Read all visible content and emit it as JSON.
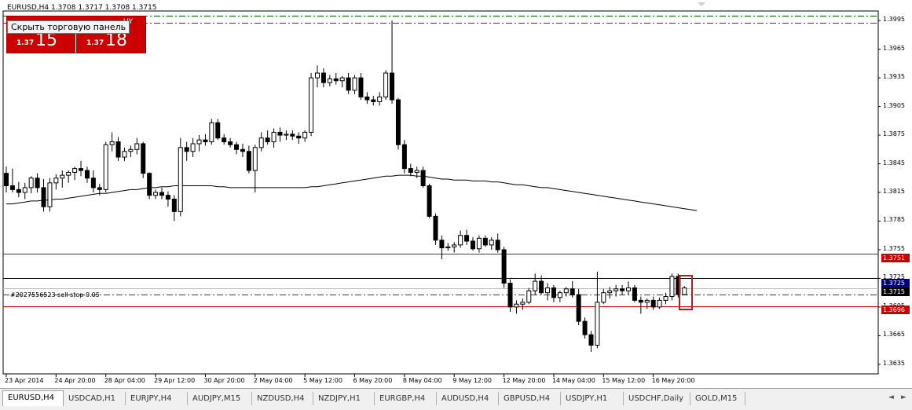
{
  "header": {
    "title": "EURUSD,H4  1.3708 1.3717 1.3708 1.3715"
  },
  "trade_panel": {
    "sell_small": "1.37",
    "sell_big": "15",
    "buy_small": "1.37",
    "buy_big": "18",
    "buy_label": "UY",
    "tooltip": "Скрыть торговую панель"
  },
  "order_label": "#2027556523 sell stop 0.05",
  "price_tags": {
    "upper_red": "1.3751",
    "blue": "1.3725",
    "black": "1.3715",
    "lower_red": "1.3696"
  },
  "colors": {
    "red_line": "#cc0000",
    "blue_tag": "#000080",
    "green_dashed": "#006400",
    "candle_bull": "#ffffff",
    "candle_bear": "#000000",
    "ma_line": "#000000"
  },
  "tabs": [
    "EURUSD,H4",
    "USDCAD,H1",
    "EURJPY,H4",
    "AUDJPY,M15",
    "NZDUSD,H4",
    "NZDJPY,H1",
    "EURGBP,H4",
    "AUDUSD,H4",
    "GBPUSD,H4",
    "USDJPY,H1",
    "USDCHF,Daily",
    "GOLD,M15"
  ],
  "active_tab": "EURUSD,H4",
  "chart_data": {
    "type": "candlestick",
    "symbol": "EURUSD",
    "timeframe": "H4",
    "y_ticks": [
      "1.3995",
      "1.3965",
      "1.3935",
      "1.3905",
      "1.3875",
      "1.3845",
      "1.3815",
      "1.3785",
      "1.3755",
      "1.3725",
      "1.3695",
      "1.3665",
      "1.3635"
    ],
    "y_tick_values": [
      1.3995,
      1.3965,
      1.3935,
      1.3905,
      1.3875,
      1.3845,
      1.3815,
      1.3785,
      1.3755,
      1.3725,
      1.3695,
      1.3665,
      1.3635
    ],
    "ylim": [
      1.3625,
      1.4005
    ],
    "x_labels": [
      "23 Apr 2014",
      "24 Apr 20:00",
      "28 Apr 04:00",
      "29 Apr 12:00",
      "30 Apr 20:00",
      "2 May 04:00",
      "5 May 12:00",
      "6 May 20:00",
      "8 May 04:00",
      "9 May 12:00",
      "12 May 20:00",
      "14 May 04:00",
      "15 May 12:00",
      "16 May 20:00"
    ],
    "x_label_bar_index": [
      0,
      8,
      16,
      24,
      32,
      40,
      48,
      56,
      64,
      72,
      80,
      88,
      96,
      104
    ],
    "horizontal_lines": [
      {
        "price": 1.4,
        "style": "dash-dot",
        "color": "#006400"
      },
      {
        "price": 1.3993,
        "style": "dash-dot",
        "color": "#006400"
      },
      {
        "price": 1.3751,
        "style": "solid",
        "color": "#cc0000"
      },
      {
        "price": 1.3725,
        "style": "solid",
        "color": "#000000"
      },
      {
        "price": 1.3715,
        "style": "solid",
        "color": "#c0c0c0"
      },
      {
        "price": 1.3708,
        "style": "dash-dot",
        "color": "#006400"
      },
      {
        "price": 1.3696,
        "style": "solid",
        "color": "#cc0000"
      }
    ],
    "moving_average": [
      1.3803,
      1.3803,
      1.3804,
      1.3805,
      1.3806,
      1.3806,
      1.3807,
      1.3807,
      1.3808,
      1.3808,
      1.3809,
      1.381,
      1.3811,
      1.3812,
      1.3813,
      1.3814,
      1.3814,
      1.3815,
      1.3816,
      1.3817,
      1.3818,
      1.3818,
      1.3819,
      1.382,
      1.382,
      1.3821,
      1.3821,
      1.3822,
      1.3822,
      1.3822,
      1.3822,
      1.3822,
      1.3822,
      1.3822,
      1.3821,
      1.3821,
      1.382,
      1.382,
      1.382,
      1.382,
      1.382,
      1.382,
      1.382,
      1.382,
      1.382,
      1.382,
      1.382,
      1.382,
      1.382,
      1.3821,
      1.3821,
      1.3822,
      1.3823,
      1.3824,
      1.3825,
      1.3826,
      1.3827,
      1.3828,
      1.3829,
      1.383,
      1.3831,
      1.3832,
      1.3832,
      1.3833,
      1.3833,
      1.3833,
      1.3832,
      1.3832,
      1.3831,
      1.383,
      1.3829,
      1.3829,
      1.3828,
      1.3828,
      1.3828,
      1.3827,
      1.3827,
      1.3827,
      1.3826,
      1.3826,
      1.3825,
      1.3824,
      1.3823,
      1.3823,
      1.3822,
      1.3821,
      1.382,
      1.382,
      1.3819,
      1.3818,
      1.3817,
      1.3816,
      1.3815,
      1.3814,
      1.3813,
      1.3812,
      1.3811,
      1.381,
      1.3809,
      1.3808,
      1.3807,
      1.3806,
      1.3805,
      1.3804,
      1.3803,
      1.3802,
      1.3801,
      1.38,
      1.3799,
      1.3798,
      1.3797,
      1.3796
    ],
    "candles": [
      [
        1.3835,
        1.3842,
        1.3815,
        1.3822
      ],
      [
        1.3822,
        1.384,
        1.3815,
        1.3818
      ],
      [
        1.3818,
        1.3826,
        1.381,
        1.3815
      ],
      [
        1.3815,
        1.3825,
        1.3808,
        1.382
      ],
      [
        1.382,
        1.3832,
        1.3814,
        1.383
      ],
      [
        1.383,
        1.3835,
        1.3815,
        1.382
      ],
      [
        1.382,
        1.3829,
        1.3795,
        1.38
      ],
      [
        1.38,
        1.383,
        1.3795,
        1.3825
      ],
      [
        1.3825,
        1.3834,
        1.3818,
        1.383
      ],
      [
        1.383,
        1.3838,
        1.382,
        1.3833
      ],
      [
        1.3833,
        1.3838,
        1.3825,
        1.3836
      ],
      [
        1.3836,
        1.3842,
        1.3828,
        1.384
      ],
      [
        1.384,
        1.3848,
        1.3832,
        1.3838
      ],
      [
        1.3838,
        1.3842,
        1.3825,
        1.383
      ],
      [
        1.383,
        1.3838,
        1.3815,
        1.382
      ],
      [
        1.382,
        1.3824,
        1.3812,
        1.3818
      ],
      [
        1.3818,
        1.3868,
        1.3815,
        1.3865
      ],
      [
        1.3865,
        1.3878,
        1.3858,
        1.3868
      ],
      [
        1.3868,
        1.3873,
        1.3848,
        1.3852
      ],
      [
        1.3852,
        1.3862,
        1.3848,
        1.3858
      ],
      [
        1.3858,
        1.3864,
        1.3852,
        1.386
      ],
      [
        1.386,
        1.3872,
        1.3855,
        1.3866
      ],
      [
        1.3866,
        1.3868,
        1.383,
        1.3835
      ],
      [
        1.3835,
        1.3836,
        1.3808,
        1.3812
      ],
      [
        1.3812,
        1.3818,
        1.3808,
        1.3815
      ],
      [
        1.3815,
        1.382,
        1.3808,
        1.3812
      ],
      [
        1.3812,
        1.3816,
        1.38,
        1.3808
      ],
      [
        1.3808,
        1.3812,
        1.3785,
        1.3795
      ],
      [
        1.3795,
        1.3872,
        1.379,
        1.3862
      ],
      [
        1.3862,
        1.3868,
        1.3848,
        1.3858
      ],
      [
        1.3858,
        1.3872,
        1.3852,
        1.3866
      ],
      [
        1.3866,
        1.3875,
        1.3858,
        1.387
      ],
      [
        1.387,
        1.3876,
        1.3864,
        1.3868
      ],
      [
        1.3868,
        1.3892,
        1.3865,
        1.3888
      ],
      [
        1.3888,
        1.3892,
        1.387,
        1.3872
      ],
      [
        1.3872,
        1.3876,
        1.3865,
        1.3868
      ],
      [
        1.3868,
        1.3872,
        1.3862,
        1.3865
      ],
      [
        1.3865,
        1.3868,
        1.3855,
        1.386
      ],
      [
        1.386,
        1.3866,
        1.3852,
        1.3858
      ],
      [
        1.3858,
        1.3864,
        1.3835,
        1.3838
      ],
      [
        1.3838,
        1.3865,
        1.3815,
        1.3862
      ],
      [
        1.3862,
        1.3878,
        1.3858,
        1.3872
      ],
      [
        1.3872,
        1.388,
        1.3865,
        1.3868
      ],
      [
        1.3868,
        1.3882,
        1.3862,
        1.3878
      ],
      [
        1.3878,
        1.3883,
        1.3868,
        1.3875
      ],
      [
        1.3875,
        1.388,
        1.387,
        1.3876
      ],
      [
        1.3876,
        1.388,
        1.387,
        1.3874
      ],
      [
        1.3874,
        1.3878,
        1.3866,
        1.3872
      ],
      [
        1.3872,
        1.388,
        1.3868,
        1.3878
      ],
      [
        1.3878,
        1.394,
        1.3874,
        1.3935
      ],
      [
        1.3935,
        1.3948,
        1.3925,
        1.394
      ],
      [
        1.394,
        1.3945,
        1.3925,
        1.393
      ],
      [
        1.393,
        1.3938,
        1.3926,
        1.3934
      ],
      [
        1.3934,
        1.394,
        1.3928,
        1.3932
      ],
      [
        1.3932,
        1.3937,
        1.3925,
        1.3935
      ],
      [
        1.3935,
        1.394,
        1.3918,
        1.3922
      ],
      [
        1.3922,
        1.3938,
        1.3918,
        1.3935
      ],
      [
        1.3935,
        1.394,
        1.3912,
        1.3915
      ],
      [
        1.3915,
        1.392,
        1.3908,
        1.3912
      ],
      [
        1.3912,
        1.3916,
        1.3906,
        1.391
      ],
      [
        1.391,
        1.392,
        1.3906,
        1.3915
      ],
      [
        1.3915,
        1.3943,
        1.3912,
        1.394
      ],
      [
        1.394,
        1.3995,
        1.3908,
        1.3912
      ],
      [
        1.3912,
        1.3914,
        1.386,
        1.3865
      ],
      [
        1.3865,
        1.387,
        1.3835,
        1.384
      ],
      [
        1.384,
        1.3845,
        1.3832,
        1.3836
      ],
      [
        1.3836,
        1.3842,
        1.383,
        1.3838
      ],
      [
        1.3838,
        1.3842,
        1.382,
        1.3822
      ],
      [
        1.3822,
        1.3824,
        1.3788,
        1.379
      ],
      [
        1.379,
        1.3793,
        1.376,
        1.3765
      ],
      [
        1.3765,
        1.377,
        1.3745,
        1.3757
      ],
      [
        1.3757,
        1.3762,
        1.3754,
        1.3758
      ],
      [
        1.3758,
        1.3763,
        1.3752,
        1.376
      ],
      [
        1.376,
        1.3775,
        1.3757,
        1.377
      ],
      [
        1.377,
        1.3776,
        1.376,
        1.3764
      ],
      [
        1.3764,
        1.3768,
        1.3754,
        1.3756
      ],
      [
        1.3756,
        1.377,
        1.3752,
        1.3767
      ],
      [
        1.3767,
        1.377,
        1.3758,
        1.376
      ],
      [
        1.376,
        1.3768,
        1.3755,
        1.3765
      ],
      [
        1.3765,
        1.3772,
        1.3752,
        1.3755
      ],
      [
        1.3755,
        1.3758,
        1.3715,
        1.372
      ],
      [
        1.372,
        1.3724,
        1.369,
        1.3695
      ],
      [
        1.3695,
        1.3702,
        1.3688,
        1.3698
      ],
      [
        1.3698,
        1.3704,
        1.3692,
        1.37
      ],
      [
        1.37,
        1.3715,
        1.3698,
        1.3712
      ],
      [
        1.3712,
        1.373,
        1.3708,
        1.3722
      ],
      [
        1.3722,
        1.3728,
        1.3708,
        1.371
      ],
      [
        1.371,
        1.372,
        1.3702,
        1.3715
      ],
      [
        1.3715,
        1.3718,
        1.37,
        1.3705
      ],
      [
        1.3705,
        1.3712,
        1.37,
        1.371
      ],
      [
        1.371,
        1.3716,
        1.3706,
        1.3714
      ],
      [
        1.3714,
        1.3722,
        1.3705,
        1.3708
      ],
      [
        1.3708,
        1.3714,
        1.3676,
        1.368
      ],
      [
        1.368,
        1.3684,
        1.3662,
        1.3666
      ],
      [
        1.3666,
        1.367,
        1.3648,
        1.3655
      ],
      [
        1.3655,
        1.3732,
        1.3652,
        1.37
      ],
      [
        1.37,
        1.3714,
        1.3698,
        1.371
      ],
      [
        1.371,
        1.3716,
        1.3704,
        1.3712
      ],
      [
        1.3712,
        1.3718,
        1.3706,
        1.3714
      ],
      [
        1.3714,
        1.3718,
        1.3708,
        1.3712
      ],
      [
        1.3712,
        1.3722,
        1.3708,
        1.3715
      ],
      [
        1.3715,
        1.3718,
        1.37,
        1.3702
      ],
      [
        1.3702,
        1.3706,
        1.3688,
        1.37
      ],
      [
        1.37,
        1.3704,
        1.3693,
        1.3702
      ],
      [
        1.3702,
        1.3706,
        1.3692,
        1.3695
      ],
      [
        1.3695,
        1.3705,
        1.3693,
        1.3702
      ],
      [
        1.3702,
        1.371,
        1.3698,
        1.3706
      ],
      [
        1.3706,
        1.373,
        1.3702,
        1.3727
      ],
      [
        1.3727,
        1.373,
        1.3705,
        1.3708
      ],
      [
        1.3708,
        1.3717,
        1.3708,
        1.3715
      ]
    ]
  }
}
